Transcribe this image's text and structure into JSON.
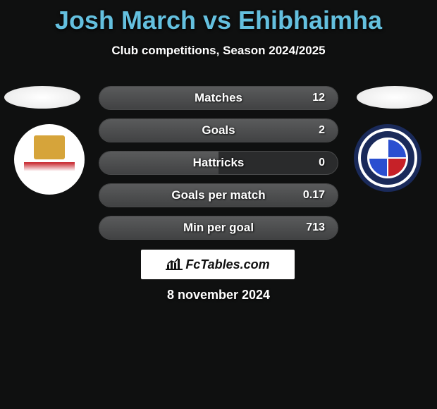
{
  "title_color": "#64c0df",
  "title": "Josh March vs Ehibhaimha",
  "subtitle": "Club competitions, Season 2024/2025",
  "stats": [
    {
      "label": "Matches",
      "value": "12",
      "fill_pct": 100
    },
    {
      "label": "Goals",
      "value": "2",
      "fill_pct": 100
    },
    {
      "label": "Hattricks",
      "value": "0",
      "fill_pct": 50
    },
    {
      "label": "Goals per match",
      "value": "0.17",
      "fill_pct": 100
    },
    {
      "label": "Min per goal",
      "value": "713",
      "fill_pct": 100
    }
  ],
  "brand_text": "FcTables.com",
  "date": "8 november 2024",
  "colors": {
    "bg": "#0f1010",
    "row_bg": "#2a2b2c",
    "row_fill_top": "#5a5b5c",
    "row_fill_bottom": "#414243",
    "brand_bg": "#ffffff"
  }
}
